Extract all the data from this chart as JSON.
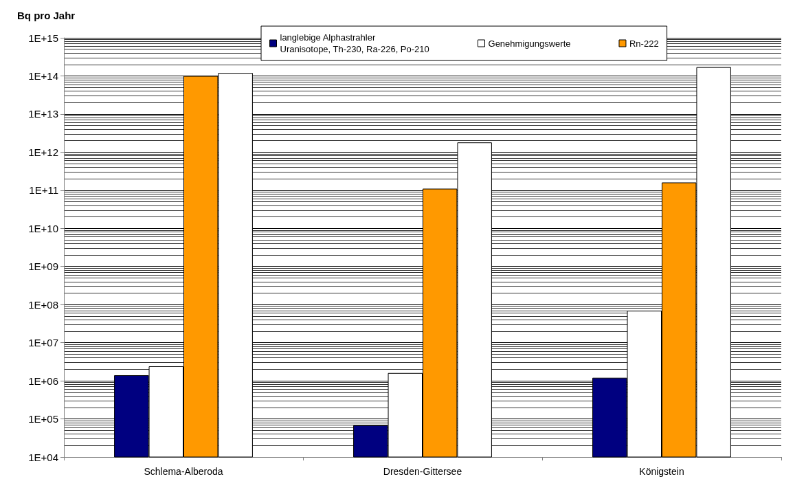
{
  "chart_data": {
    "type": "bar",
    "ylabel": "Bq pro Jahr",
    "categories": [
      "Schlema-Alberoda",
      "Dresden-Gittersee",
      "Königstein"
    ],
    "series": [
      {
        "name": "langlebige Alphastrahler\nUranisotope, Th-230, Ra-226, Po-210",
        "color": "#000080",
        "values": [
          1400000,
          68000,
          1200000
        ]
      },
      {
        "name": "Genehmigungswerte",
        "color": "#ffffff",
        "values": [
          2400000,
          1600000,
          69000000
        ]
      },
      {
        "name": "Rn-222",
        "color": "#ff9900",
        "values": [
          100000000000000,
          110000000000,
          160000000000
        ]
      },
      {
        "color": "#ffffff",
        "values": [
          120000000000000,
          1800000000000,
          170000000000000
        ]
      }
    ],
    "log": "y",
    "ylim": [
      10000,
      1000000000000000
    ],
    "yticks": [
      {
        "value": 10000,
        "label": "1E+04"
      },
      {
        "value": 100000,
        "label": "1E+05"
      },
      {
        "value": 1000000,
        "label": "1E+06"
      },
      {
        "value": 10000000,
        "label": "1E+07"
      },
      {
        "value": 100000000,
        "label": "1E+08"
      },
      {
        "value": 1000000000,
        "label": "1E+09"
      },
      {
        "value": 10000000000,
        "label": "1E+10"
      },
      {
        "value": 100000000000,
        "label": "1E+11"
      },
      {
        "value": 1000000000000,
        "label": "1E+12"
      },
      {
        "value": 10000000000000,
        "label": "1E+13"
      },
      {
        "value": 100000000000000,
        "label": "1E+14"
      },
      {
        "value": 1000000000000000,
        "label": "1E+15"
      }
    ],
    "grid": "y",
    "legend": "top"
  }
}
